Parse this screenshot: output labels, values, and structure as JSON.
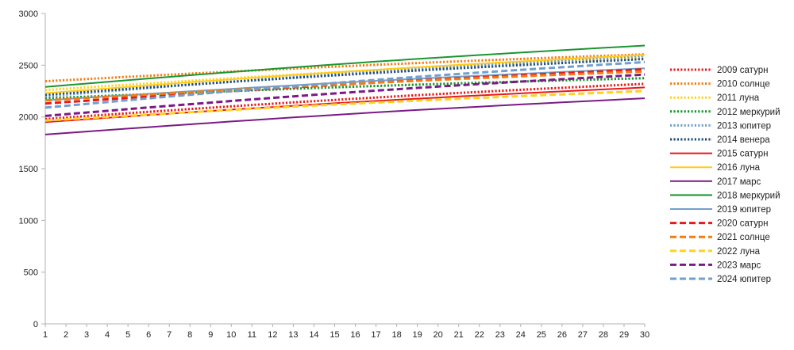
{
  "chart_data": {
    "type": "line",
    "title": "",
    "xlabel": "",
    "ylabel": "",
    "x": [
      1,
      2,
      3,
      4,
      5,
      6,
      7,
      8,
      9,
      10,
      11,
      12,
      13,
      14,
      15,
      16,
      17,
      18,
      19,
      20,
      21,
      22,
      23,
      24,
      25,
      26,
      27,
      28,
      29,
      30
    ],
    "ylim": [
      0,
      3000
    ],
    "yticks": [
      0,
      500,
      1000,
      1500,
      2000,
      2500,
      3000
    ],
    "grid": false,
    "legend": "right",
    "series": [
      {
        "name": "2009 сатурн",
        "color": "#e6191b",
        "dash": "dotted",
        "start": 1980,
        "end": 2320
      },
      {
        "name": "2010 солнце",
        "color": "#f27d14",
        "dash": "dotted",
        "start": 2345,
        "end": 2605
      },
      {
        "name": "2011 луна",
        "color": "#ffd21f",
        "dash": "dotted",
        "start": 2260,
        "end": 2575
      },
      {
        "name": "2012 меркурий",
        "color": "#1a9630",
        "dash": "dotted",
        "start": 2180,
        "end": 2375
      },
      {
        "name": "2013 юпитер",
        "color": "#739fcc",
        "dash": "dotted",
        "start": 2200,
        "end": 2590
      },
      {
        "name": "2014 венера",
        "color": "#1f4e79",
        "dash": "dotted",
        "start": 2215,
        "end": 2560
      },
      {
        "name": "2015 сатурн",
        "color": "#e6191b",
        "dash": "solid",
        "start": 1950,
        "end": 2285
      },
      {
        "name": "2016 луна",
        "color": "#ffcc1a",
        "dash": "solid",
        "start": 2230,
        "end": 2600
      },
      {
        "name": "2017 марс",
        "color": "#7b1a85",
        "dash": "solid",
        "start": 1830,
        "end": 2180
      },
      {
        "name": "2018 меркурий",
        "color": "#1a9630",
        "dash": "solid",
        "start": 2290,
        "end": 2690
      },
      {
        "name": "2019 юпитер",
        "color": "#739fcc",
        "dash": "solid",
        "start": 2160,
        "end": 2470
      },
      {
        "name": "2020 сатурн",
        "color": "#e6191b",
        "dash": "dashed",
        "start": 2130,
        "end": 2460
      },
      {
        "name": "2021 солнце",
        "color": "#f27d14",
        "dash": "dashed",
        "start": 2160,
        "end": 2440
      },
      {
        "name": "2022 луна",
        "color": "#ffd21f",
        "dash": "dashed",
        "start": 1965,
        "end": 2250
      },
      {
        "name": "2023 марс",
        "color": "#7b1a85",
        "dash": "dashed",
        "start": 2010,
        "end": 2410
      },
      {
        "name": "2024 юпитер",
        "color": "#739fcc",
        "dash": "dashed",
        "start": 2090,
        "end": 2530
      }
    ]
  }
}
